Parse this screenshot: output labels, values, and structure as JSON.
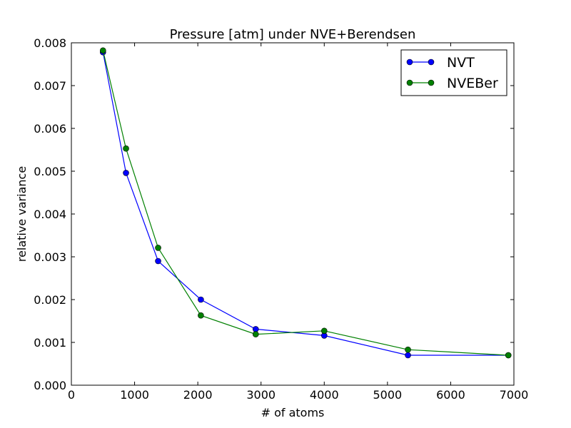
{
  "chart_data": {
    "type": "line",
    "title": "Pressure [atm] under NVE+Berendsen",
    "xlabel": "# of atoms",
    "ylabel": "relative variance",
    "xlim": [
      0,
      7000
    ],
    "ylim": [
      0.0,
      0.008
    ],
    "x_ticks": [
      0,
      1000,
      2000,
      3000,
      4000,
      5000,
      6000,
      7000
    ],
    "x_tick_labels": [
      "0",
      "1000",
      "2000",
      "3000",
      "4000",
      "5000",
      "6000",
      "7000"
    ],
    "y_ticks": [
      0.0,
      0.001,
      0.002,
      0.003,
      0.004,
      0.005,
      0.006,
      0.007,
      0.008
    ],
    "y_tick_labels": [
      "0.000",
      "0.001",
      "0.002",
      "0.003",
      "0.004",
      "0.005",
      "0.006",
      "0.007",
      "0.008"
    ],
    "grid": false,
    "legend_position": "top-right",
    "series": [
      {
        "name": "NVT",
        "color": "#0000ff",
        "x": [
          500,
          864,
          1372,
          2048,
          2916,
          4000,
          5324,
          6912
        ],
        "y": [
          0.00778,
          0.00496,
          0.0029,
          0.002,
          0.00131,
          0.00116,
          0.0007,
          0.0007
        ]
      },
      {
        "name": "NVEBer",
        "color": "#008000",
        "x": [
          500,
          864,
          1372,
          2048,
          2916,
          4000,
          5324,
          6912
        ],
        "y": [
          0.00782,
          0.00553,
          0.00321,
          0.00163,
          0.00119,
          0.00127,
          0.00083,
          0.0007
        ]
      }
    ]
  }
}
